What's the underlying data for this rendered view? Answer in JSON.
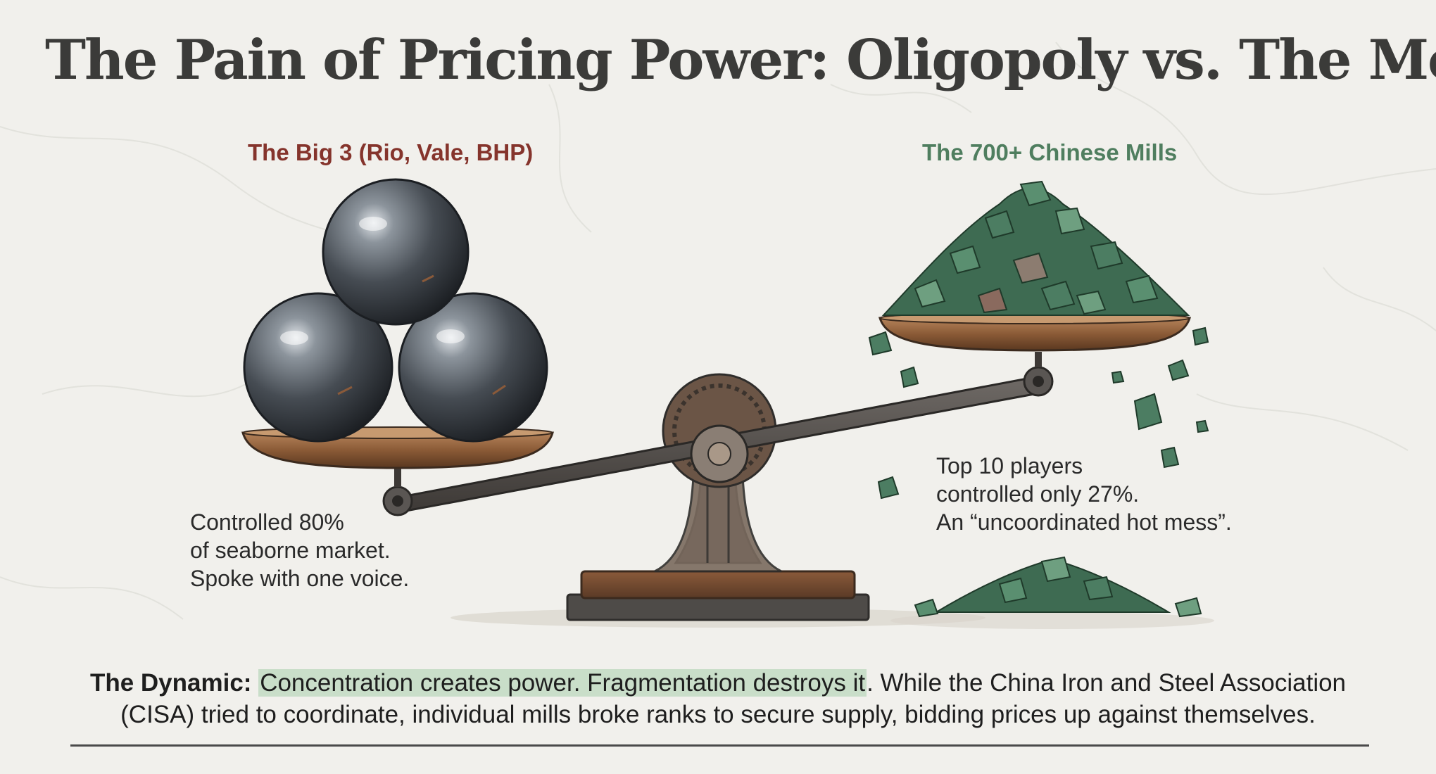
{
  "title": "The Pain of Pricing Power: Oligopoly vs. The Mob",
  "left_side": {
    "label": "The Big 3 (Rio, Vale, BHP)",
    "note_lines": [
      "Controlled 80%",
      "of seaborne market.",
      "Spoke with one voice."
    ]
  },
  "right_side": {
    "label": "The 700+ Chinese Mills",
    "note_lines": [
      "Top 10 players",
      "controlled only 27%.",
      "An “uncoordinated hot mess”."
    ]
  },
  "caption": {
    "lead": "The Dynamic:",
    "highlight": "Concentration creates power. Fragmentation destroys it",
    "rest": ". While the China Iron and Steel Association (CISA) tried to coordinate, individual mills broke ranks to secure supply, bidding prices up against themselves."
  },
  "colors": {
    "background": "#f1f0ec",
    "title": "#3b3b39",
    "left_label": "#85342c",
    "right_label": "#4f7e5f",
    "highlight": "#c9dec9"
  },
  "icons": [
    "iron-ball-icon",
    "ore-pile-icon",
    "balance-scale-icon"
  ]
}
